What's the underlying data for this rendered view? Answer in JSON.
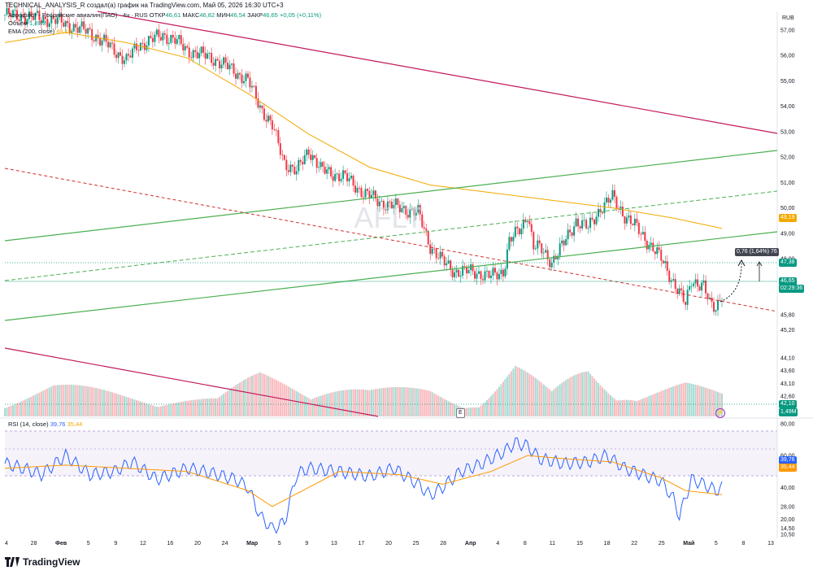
{
  "header": {
    "title": "TECHNICAL_ANALYSIS_R создал(а) график на TradingView.com, Май 05, 2026 16:30 UTC+3"
  },
  "legend": {
    "symbol": "Аэрофлот - Российские авиалин(ПАО) · 4ч · RUS",
    "open_label": "ОТКР",
    "open": "46,61",
    "high_label": "МАКС",
    "high": "46,82",
    "low_label": "МИН",
    "low": "46,54",
    "close_label": "ЗАКР",
    "close": "46,65",
    "change": "+0,05 (+0,11%)",
    "volume_label": "Объём",
    "volume": "1,49M",
    "ema_label": "EMA (200, close)",
    "ema": "49,19",
    "rsi_label": "RSI (14, close)",
    "rsi": "39,76",
    "rsi_ma": "35,44"
  },
  "watermark": "AFLT",
  "currency": "RUB",
  "footer": {
    "brand": "TradingView"
  },
  "measure_label": "0,76 (1,64%) 76",
  "badges": {
    "ema": "49,19",
    "level": "47,38",
    "price": "46,65",
    "countdown": "02:29:36",
    "vol_a": "42,10",
    "vol_b": "1,49M",
    "rsi": "39,76",
    "rsi_ma": "35,44",
    "event": "E"
  },
  "colors": {
    "up": "#089981",
    "down": "#f23645",
    "ema": "#f2a900",
    "rsi": "#2962ff",
    "rsi_ma": "#ff9800",
    "channel_green": "#4caf50",
    "trend_red": "#c2185b",
    "rsi_band": "#7e57c2"
  },
  "chart_data": {
    "type": "candlestick",
    "price_axis": {
      "ticks": [
        "57,00",
        "56,00",
        "55,00",
        "54,00",
        "53,00",
        "52,00",
        "51,00",
        "50,00",
        "49,00",
        "48,00",
        "47,00",
        "45,80",
        "45,20",
        "44,10",
        "43,60",
        "43,10",
        "42,60"
      ],
      "ylim": [
        41.8,
        57.6
      ]
    },
    "rsi_axis": {
      "ticks": [
        "80,00",
        "60,00",
        "40,00",
        "28,00",
        "20,00",
        "14,50",
        "10,50"
      ],
      "ylim": [
        8,
        82
      ],
      "band": [
        30,
        70
      ]
    },
    "time_axis": {
      "ticks": [
        "4",
        "28",
        "Фев",
        "5",
        "9",
        "12",
        "16",
        "20",
        "24",
        "Мар",
        "5",
        "9",
        "13",
        "17",
        "20",
        "25",
        "28",
        "Апр",
        "4",
        "8",
        "11",
        "15",
        "18",
        "22",
        "25",
        "Май",
        "5",
        "8",
        "13"
      ]
    },
    "price_path": [
      [
        0,
        57.6
      ],
      [
        4,
        57.5
      ],
      [
        8,
        57.4
      ],
      [
        14,
        56.9
      ],
      [
        17,
        56.4
      ],
      [
        20,
        55.8
      ],
      [
        22,
        56.4
      ],
      [
        26,
        56.8
      ],
      [
        28,
        56.6
      ],
      [
        30,
        56.2
      ],
      [
        34,
        55.9
      ],
      [
        37,
        55.5
      ],
      [
        40,
        55.0
      ],
      [
        42,
        54.0
      ],
      [
        44,
        53.2
      ],
      [
        46,
        51.8
      ],
      [
        48,
        51.4
      ],
      [
        50,
        52.3
      ],
      [
        52,
        51.5
      ],
      [
        56,
        51.2
      ],
      [
        59,
        50.6
      ],
      [
        62,
        50.2
      ],
      [
        65,
        50.0
      ],
      [
        68,
        49.8
      ],
      [
        70,
        48.5
      ],
      [
        72,
        47.9
      ],
      [
        74,
        47.5
      ],
      [
        77,
        47.5
      ],
      [
        80,
        47.3
      ],
      [
        82,
        47.5
      ],
      [
        83,
        48.7
      ],
      [
        85,
        49.2
      ],
      [
        86,
        49.8
      ],
      [
        87,
        48.5
      ],
      [
        88,
        48.4
      ],
      [
        90,
        47.9
      ],
      [
        92,
        48.6
      ],
      [
        94,
        49.5
      ],
      [
        96,
        49.2
      ],
      [
        98,
        50.0
      ],
      [
        100,
        50.4
      ],
      [
        102,
        49.7
      ],
      [
        104,
        49.2
      ],
      [
        106,
        48.6
      ],
      [
        108,
        48.0
      ],
      [
        110,
        47.1
      ],
      [
        112,
        46.2
      ],
      [
        113,
        47.2
      ],
      [
        115,
        46.9
      ],
      [
        116,
        46.2
      ],
      [
        117,
        46.1
      ],
      [
        118,
        46.65
      ]
    ],
    "ema200": [
      [
        0,
        56.5
      ],
      [
        10,
        56.9
      ],
      [
        20,
        56.5
      ],
      [
        30,
        55.9
      ],
      [
        40,
        54.5
      ],
      [
        50,
        52.9
      ],
      [
        60,
        51.6
      ],
      [
        70,
        50.9
      ],
      [
        80,
        50.6
      ],
      [
        90,
        50.3
      ],
      [
        100,
        50.0
      ],
      [
        110,
        49.6
      ],
      [
        118,
        49.19
      ]
    ],
    "volume_path": [
      [
        0,
        1.2
      ],
      [
        8,
        2.0
      ],
      [
        20,
        1.5
      ],
      [
        35,
        1.1
      ],
      [
        42,
        2.8
      ],
      [
        50,
        2.5
      ],
      [
        60,
        1.6
      ],
      [
        70,
        1.9
      ],
      [
        78,
        0.9
      ],
      [
        84,
        3.2
      ],
      [
        90,
        1.5
      ],
      [
        96,
        3.6
      ],
      [
        104,
        1.4
      ],
      [
        112,
        2.0
      ],
      [
        118,
        1.49
      ]
    ],
    "rsi_path": [
      [
        0,
        55
      ],
      [
        3,
        52
      ],
      [
        6,
        48
      ],
      [
        10,
        60
      ],
      [
        14,
        48
      ],
      [
        18,
        50
      ],
      [
        21,
        56
      ],
      [
        25,
        45
      ],
      [
        30,
        52
      ],
      [
        34,
        49
      ],
      [
        38,
        45
      ],
      [
        40,
        40
      ],
      [
        42,
        22
      ],
      [
        44,
        14
      ],
      [
        46,
        18
      ],
      [
        48,
        48
      ],
      [
        50,
        52
      ],
      [
        55,
        50
      ],
      [
        60,
        47
      ],
      [
        64,
        52
      ],
      [
        68,
        42
      ],
      [
        70,
        35
      ],
      [
        72,
        40
      ],
      [
        75,
        50
      ],
      [
        78,
        54
      ],
      [
        82,
        62
      ],
      [
        84,
        68
      ],
      [
        86,
        66
      ],
      [
        88,
        58
      ],
      [
        92,
        55
      ],
      [
        96,
        56
      ],
      [
        99,
        60
      ],
      [
        102,
        52
      ],
      [
        105,
        48
      ],
      [
        108,
        44
      ],
      [
        110,
        33
      ],
      [
        111,
        22
      ],
      [
        113,
        45
      ],
      [
        115,
        42
      ],
      [
        117,
        38
      ],
      [
        118,
        39.76
      ]
    ],
    "rsi_ma_path": [
      [
        0,
        52
      ],
      [
        10,
        54
      ],
      [
        20,
        52
      ],
      [
        30,
        50
      ],
      [
        40,
        38
      ],
      [
        44,
        28
      ],
      [
        48,
        36
      ],
      [
        55,
        50
      ],
      [
        65,
        48
      ],
      [
        72,
        42
      ],
      [
        80,
        50
      ],
      [
        86,
        60
      ],
      [
        92,
        58
      ],
      [
        100,
        56
      ],
      [
        108,
        46
      ],
      [
        112,
        38
      ],
      [
        118,
        35.44
      ]
    ]
  }
}
